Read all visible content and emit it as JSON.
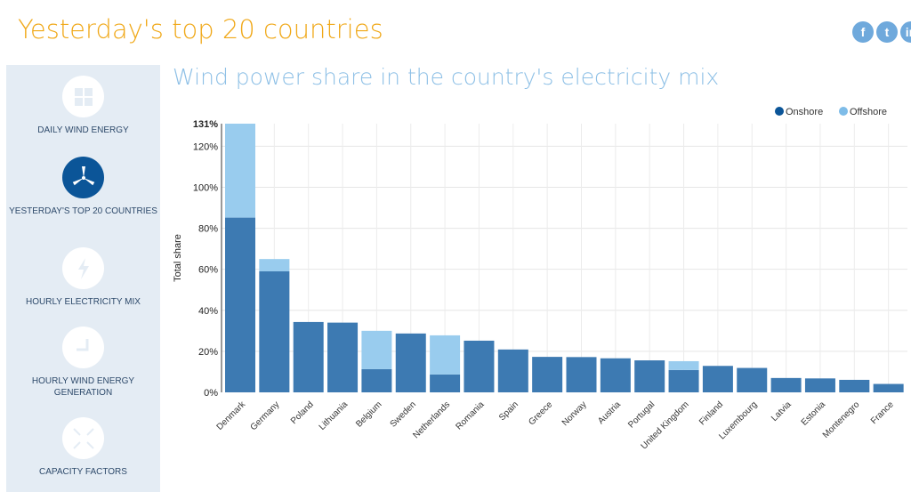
{
  "header": {
    "title": "Yesterday's top 20 countries",
    "social": [
      {
        "icon": "facebook-icon",
        "label": "f"
      },
      {
        "icon": "twitter-icon",
        "label": "t"
      },
      {
        "icon": "linkedin-icon",
        "label": "in"
      }
    ]
  },
  "sidebar": {
    "items": [
      {
        "label": "Daily wind energy",
        "icon": "grid-icon",
        "active": false
      },
      {
        "label": "Yesterday's top 20 countries",
        "icon": "wind-turbine-icon",
        "active": true
      },
      {
        "label": "Hourly electricity mix",
        "icon": "lightning-icon",
        "active": false
      },
      {
        "label": "Hourly wind energy generation",
        "icon": "clock-icon",
        "active": false
      },
      {
        "label": "Capacity factors",
        "icon": "expand-icon",
        "active": false
      }
    ]
  },
  "chart_data": {
    "type": "bar",
    "stacked": true,
    "title": "Wind power share in the country's electricity mix",
    "ylabel": "Total share",
    "xlabel": "",
    "ylim": [
      0,
      131
    ],
    "yticks": [
      0,
      20,
      40,
      60,
      80,
      100,
      120,
      131
    ],
    "ytick_labels": [
      "0%",
      "20%",
      "40%",
      "60%",
      "80%",
      "100%",
      "120%",
      "131%"
    ],
    "legend_position": "top-right",
    "categories": [
      "Denmark",
      "Germany",
      "Poland",
      "Lithuania",
      "Belgium",
      "Sweden",
      "Netherlands",
      "Romania",
      "Spain",
      "Greece",
      "Norway",
      "Austria",
      "Portugal",
      "United Kingdom",
      "Finland",
      "Luxembourg",
      "Latvia",
      "Estonia",
      "Montenegro",
      "France"
    ],
    "series": [
      {
        "name": "Onshore",
        "color": "#0b5598",
        "values": [
          85.2,
          59,
          34.3,
          34,
          11.3,
          28.7,
          8.7,
          25.2,
          20.9,
          17.3,
          17.2,
          16.6,
          15.6,
          10.9,
          12.9,
          11.9,
          7.0,
          6.8,
          6.1,
          4.1
        ]
      },
      {
        "name": "Offshore",
        "color": "#7ebce8",
        "values": [
          45.8,
          6,
          0,
          0,
          18.7,
          0,
          19.1,
          0,
          0,
          0,
          0,
          0,
          0,
          4.3,
          0,
          0,
          0,
          0,
          0,
          0
        ]
      }
    ]
  }
}
